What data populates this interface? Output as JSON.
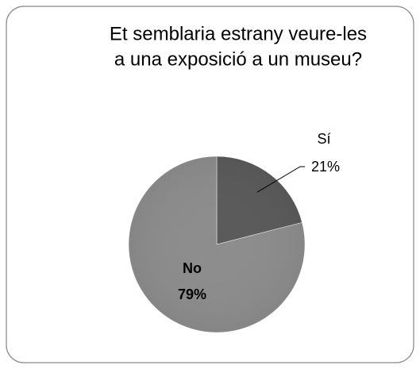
{
  "chart_data": {
    "type": "pie",
    "title": [
      "Et semblaria estrany veure-les",
      "a una exposició a un museu?"
    ],
    "categories": [
      "Sí",
      "No"
    ],
    "values": [
      21,
      79
    ],
    "value_labels": [
      "21%",
      "79%"
    ],
    "colors": [
      "#595959",
      "#8c8c8c"
    ]
  }
}
